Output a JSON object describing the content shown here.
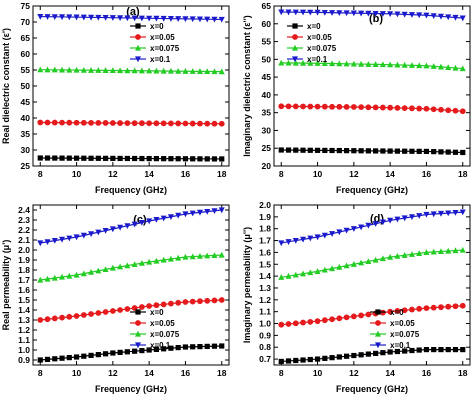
{
  "chart_data": [
    {
      "type": "line",
      "panel_label": "(a)",
      "xlabel": "Frequency (GHz)",
      "ylabel": "Real dielectric constant (ε')",
      "xlim": [
        7.6,
        18.4
      ],
      "ylim": [
        25,
        75
      ],
      "xticks": [
        8,
        10,
        12,
        14,
        16,
        18
      ],
      "yticks": [
        25,
        30,
        35,
        40,
        45,
        50,
        55,
        60,
        65,
        70,
        75
      ],
      "legend_position": "top-right",
      "series": [
        {
          "name": "x=0",
          "color": "#000000",
          "marker": "square",
          "x": [
            8,
            18
          ],
          "y": [
            27.5,
            27.2
          ]
        },
        {
          "name": "x=0.05",
          "color": "#e41a1c",
          "marker": "circle",
          "x": [
            8,
            18
          ],
          "y": [
            38.6,
            38.2
          ]
        },
        {
          "name": "x=0.075",
          "color": "#22cc22",
          "marker": "triangle-up",
          "x": [
            8,
            18
          ],
          "y": [
            55.1,
            54.5
          ]
        },
        {
          "name": "x=0.1",
          "color": "#1a1acc",
          "marker": "triangle-down",
          "x": [
            8,
            18
          ],
          "y": [
            71.7,
            70.8
          ]
        }
      ]
    },
    {
      "type": "line",
      "panel_label": "(b)",
      "xlabel": "Frequency (GHz)",
      "ylabel": "Imaginary dielectric constant (ε'')",
      "xlim": [
        7.6,
        18.4
      ],
      "ylim": [
        20,
        65
      ],
      "xticks": [
        8,
        10,
        12,
        14,
        16,
        18
      ],
      "yticks": [
        20,
        25,
        30,
        35,
        40,
        45,
        50,
        55,
        60,
        65
      ],
      "legend_position": "top-left",
      "series": [
        {
          "name": "x=0",
          "color": "#000000",
          "marker": "square",
          "x": [
            8,
            10,
            12,
            14,
            16,
            18
          ],
          "y": [
            24.5,
            24.4,
            24.3,
            24.2,
            24.1,
            23.8
          ]
        },
        {
          "name": "x=0.05",
          "color": "#e41a1c",
          "marker": "circle",
          "x": [
            8,
            10,
            12,
            14,
            16,
            18
          ],
          "y": [
            36.8,
            36.7,
            36.6,
            36.4,
            36.1,
            35.4
          ]
        },
        {
          "name": "x=0.075",
          "color": "#22cc22",
          "marker": "triangle-up",
          "x": [
            8,
            10,
            12,
            14,
            16,
            18
          ],
          "y": [
            49.0,
            48.9,
            48.7,
            48.5,
            48.2,
            47.4
          ]
        },
        {
          "name": "x=0.1",
          "color": "#1a1acc",
          "marker": "triangle-down",
          "x": [
            8,
            10,
            12,
            14,
            16,
            18
          ],
          "y": [
            63.3,
            63.2,
            63.0,
            62.8,
            62.4,
            61.6
          ]
        }
      ]
    },
    {
      "type": "line",
      "panel_label": "(c)",
      "xlabel": "Frequency (GHz)",
      "ylabel": "Real permeability (μ')",
      "xlim": [
        7.6,
        18.4
      ],
      "ylim": [
        0.85,
        2.45
      ],
      "xticks": [
        8,
        10,
        12,
        14,
        16,
        18
      ],
      "yticks": [
        0.9,
        1.0,
        1.1,
        1.2,
        1.3,
        1.4,
        1.5,
        1.6,
        1.7,
        1.8,
        1.9,
        2.0,
        2.1,
        2.2,
        2.3,
        2.4
      ],
      "ytick_labels": [
        "0.9",
        "1.0",
        "1.1",
        "1.2",
        "1.3",
        "1.4",
        "1.5",
        "1.6",
        "1.7",
        "1.8",
        "1.9",
        "2.0",
        "2.1",
        "2.2",
        "2.3",
        "2.4"
      ],
      "legend_position": "bottom-right",
      "series": [
        {
          "name": "x=0",
          "color": "#000000",
          "marker": "square",
          "x": [
            8,
            10,
            12,
            14,
            16,
            18
          ],
          "y": [
            0.9,
            0.93,
            0.97,
            1.0,
            1.03,
            1.04
          ]
        },
        {
          "name": "x=0.05",
          "color": "#e41a1c",
          "marker": "circle",
          "x": [
            8,
            10,
            12,
            14,
            16,
            18
          ],
          "y": [
            1.3,
            1.34,
            1.39,
            1.44,
            1.48,
            1.5
          ]
        },
        {
          "name": "x=0.075",
          "color": "#22cc22",
          "marker": "triangle-up",
          "x": [
            8,
            10,
            12,
            14,
            16,
            18
          ],
          "y": [
            1.7,
            1.75,
            1.82,
            1.88,
            1.93,
            1.95
          ]
        },
        {
          "name": "x=0.1",
          "color": "#1a1acc",
          "marker": "triangle-down",
          "x": [
            8,
            10,
            12,
            14,
            16,
            18
          ],
          "y": [
            2.07,
            2.13,
            2.21,
            2.29,
            2.36,
            2.4
          ]
        }
      ]
    },
    {
      "type": "line",
      "panel_label": "(d)",
      "xlabel": "Frequency (GHz)",
      "ylabel": "Imaginary permeability (μ'')",
      "xlim": [
        7.6,
        18.4
      ],
      "ylim": [
        0.65,
        2.0
      ],
      "xticks": [
        8,
        10,
        12,
        14,
        16,
        18
      ],
      "yticks": [
        0.7,
        0.8,
        0.9,
        1.0,
        1.1,
        1.2,
        1.3,
        1.4,
        1.5,
        1.6,
        1.7,
        1.8,
        1.9,
        2.0
      ],
      "ytick_labels": [
        "0.7",
        "0.8",
        "0.9",
        "1.0",
        "1.1",
        "1.2",
        "1.3",
        "1.4",
        "1.5",
        "1.6",
        "1.7",
        "1.8",
        "1.9",
        "2.0"
      ],
      "legend_position": "bottom-right",
      "series": [
        {
          "name": "x=0",
          "color": "#000000",
          "marker": "square",
          "x": [
            8,
            10,
            12,
            14,
            16,
            18
          ],
          "y": [
            0.68,
            0.7,
            0.73,
            0.76,
            0.78,
            0.78
          ]
        },
        {
          "name": "x=0.05",
          "color": "#e41a1c",
          "marker": "circle",
          "x": [
            8,
            10,
            12,
            14,
            16,
            18
          ],
          "y": [
            0.99,
            1.02,
            1.06,
            1.1,
            1.13,
            1.15
          ]
        },
        {
          "name": "x=0.075",
          "color": "#22cc22",
          "marker": "triangle-up",
          "x": [
            8,
            10,
            12,
            14,
            16,
            18
          ],
          "y": [
            1.39,
            1.44,
            1.5,
            1.56,
            1.6,
            1.62
          ]
        },
        {
          "name": "x=0.1",
          "color": "#1a1acc",
          "marker": "triangle-down",
          "x": [
            8,
            10,
            12,
            14,
            16,
            18
          ],
          "y": [
            1.68,
            1.73,
            1.8,
            1.87,
            1.92,
            1.94
          ]
        }
      ]
    }
  ]
}
